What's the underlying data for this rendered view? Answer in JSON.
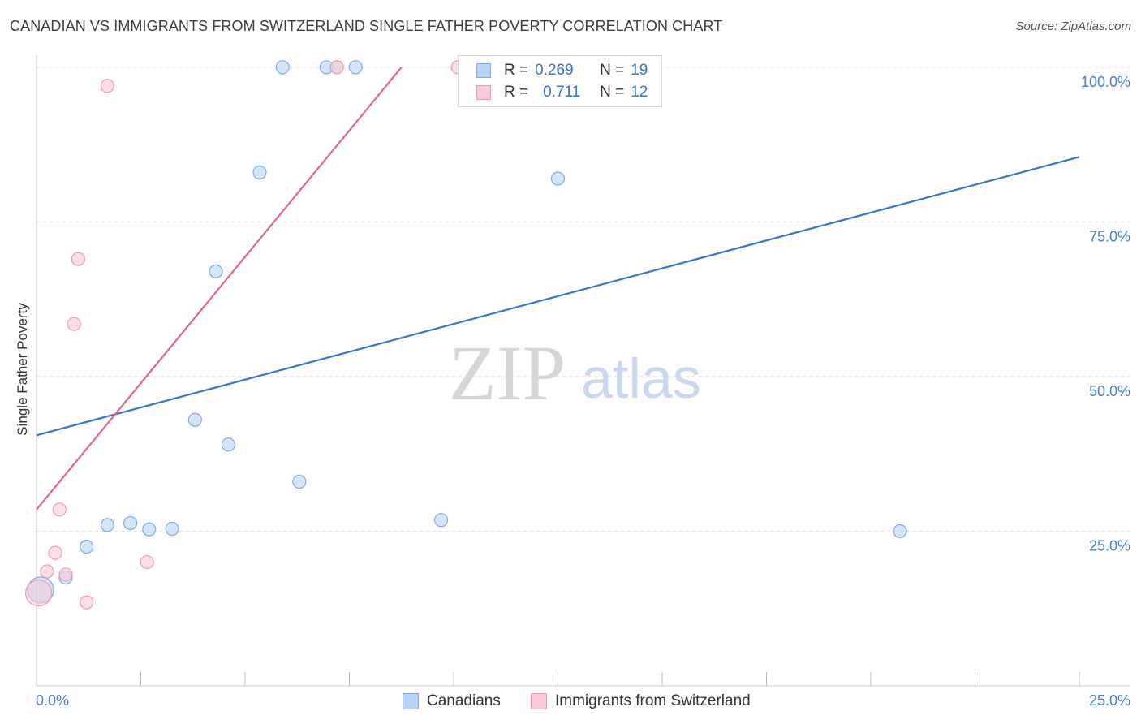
{
  "header": {
    "title": "CANADIAN VS IMMIGRANTS FROM SWITZERLAND SINGLE FATHER POVERTY CORRELATION CHART",
    "source": "Source: ZipAtlas.com"
  },
  "watermark": {
    "zip": "ZIP",
    "atlas": "atlas"
  },
  "colors": {
    "canadians_fill": "#b8d3f5",
    "canadians_stroke": "#7faae0",
    "canadians_line": "#3575d0",
    "swiss_fill": "#f9c9d7",
    "swiss_stroke": "#ee9bb5",
    "swiss_line": "#e5648e",
    "tick_text": "#4a7fd0"
  },
  "legend": {
    "rows": [
      {
        "r_label": "R =",
        "r_value": "0.269",
        "n_label": "N =",
        "n_value": "19"
      },
      {
        "r_label": "R =",
        "r_value": "0.711",
        "n_label": "N =",
        "n_value": "12"
      }
    ]
  },
  "bottom_legend": {
    "canadians": "Canadians",
    "swiss": "Immigrants from Switzerland"
  },
  "chart_data": {
    "type": "scatter",
    "title": "CANADIAN VS IMMIGRANTS FROM SWITZERLAND SINGLE FATHER POVERTY CORRELATION CHART",
    "xlabel": "",
    "ylabel": "Single Father Poverty",
    "xlim": [
      0,
      25
    ],
    "ylim": [
      0,
      103
    ],
    "x_tick_labels": [
      "0.0%",
      "25.0%"
    ],
    "y_tick_labels": [
      "25.0%",
      "50.0%",
      "75.0%",
      "100.0%"
    ],
    "y_ticks": [
      25,
      50,
      75,
      100
    ],
    "x_minor_ticks": [
      2.5,
      5,
      7.5,
      10,
      12.5,
      15,
      17.5,
      20,
      22.5,
      25
    ],
    "series": [
      {
        "name": "Canadians",
        "r": 0.269,
        "n": 19,
        "points": [
          {
            "x": 0.1,
            "y": 15.5,
            "big": true
          },
          {
            "x": 0.7,
            "y": 17.5
          },
          {
            "x": 1.2,
            "y": 22.5
          },
          {
            "x": 1.7,
            "y": 26.0
          },
          {
            "x": 2.25,
            "y": 26.3
          },
          {
            "x": 2.7,
            "y": 25.3
          },
          {
            "x": 3.25,
            "y": 25.4
          },
          {
            "x": 3.8,
            "y": 43.0
          },
          {
            "x": 4.3,
            "y": 67.0
          },
          {
            "x": 4.6,
            "y": 39.0
          },
          {
            "x": 5.35,
            "y": 83.0
          },
          {
            "x": 5.9,
            "y": 100.0
          },
          {
            "x": 6.3,
            "y": 33.0
          },
          {
            "x": 6.95,
            "y": 100.0
          },
          {
            "x": 7.2,
            "y": 100.0
          },
          {
            "x": 7.65,
            "y": 100.0
          },
          {
            "x": 9.7,
            "y": 26.8
          },
          {
            "x": 12.5,
            "y": 82.0
          },
          {
            "x": 20.7,
            "y": 25.0
          }
        ],
        "trend": {
          "x0": 0,
          "y0": 40.5,
          "x1": 25,
          "y1": 85.5
        }
      },
      {
        "name": "Immigrants from Switzerland",
        "r": 0.711,
        "n": 12,
        "points": [
          {
            "x": 0.05,
            "y": 15.0,
            "big": true
          },
          {
            "x": 0.25,
            "y": 18.5
          },
          {
            "x": 0.45,
            "y": 21.5
          },
          {
            "x": 0.55,
            "y": 28.5
          },
          {
            "x": 0.7,
            "y": 18.0
          },
          {
            "x": 0.9,
            "y": 58.5
          },
          {
            "x": 1.0,
            "y": 69.0
          },
          {
            "x": 1.2,
            "y": 13.5
          },
          {
            "x": 1.7,
            "y": 97.0
          },
          {
            "x": 2.65,
            "y": 20.0
          },
          {
            "x": 7.2,
            "y": 100.0
          },
          {
            "x": 10.1,
            "y": 100.0
          }
        ],
        "trend": {
          "x0": 0,
          "y0": 28.5,
          "x1": 8.75,
          "y1": 100.0
        }
      }
    ]
  }
}
